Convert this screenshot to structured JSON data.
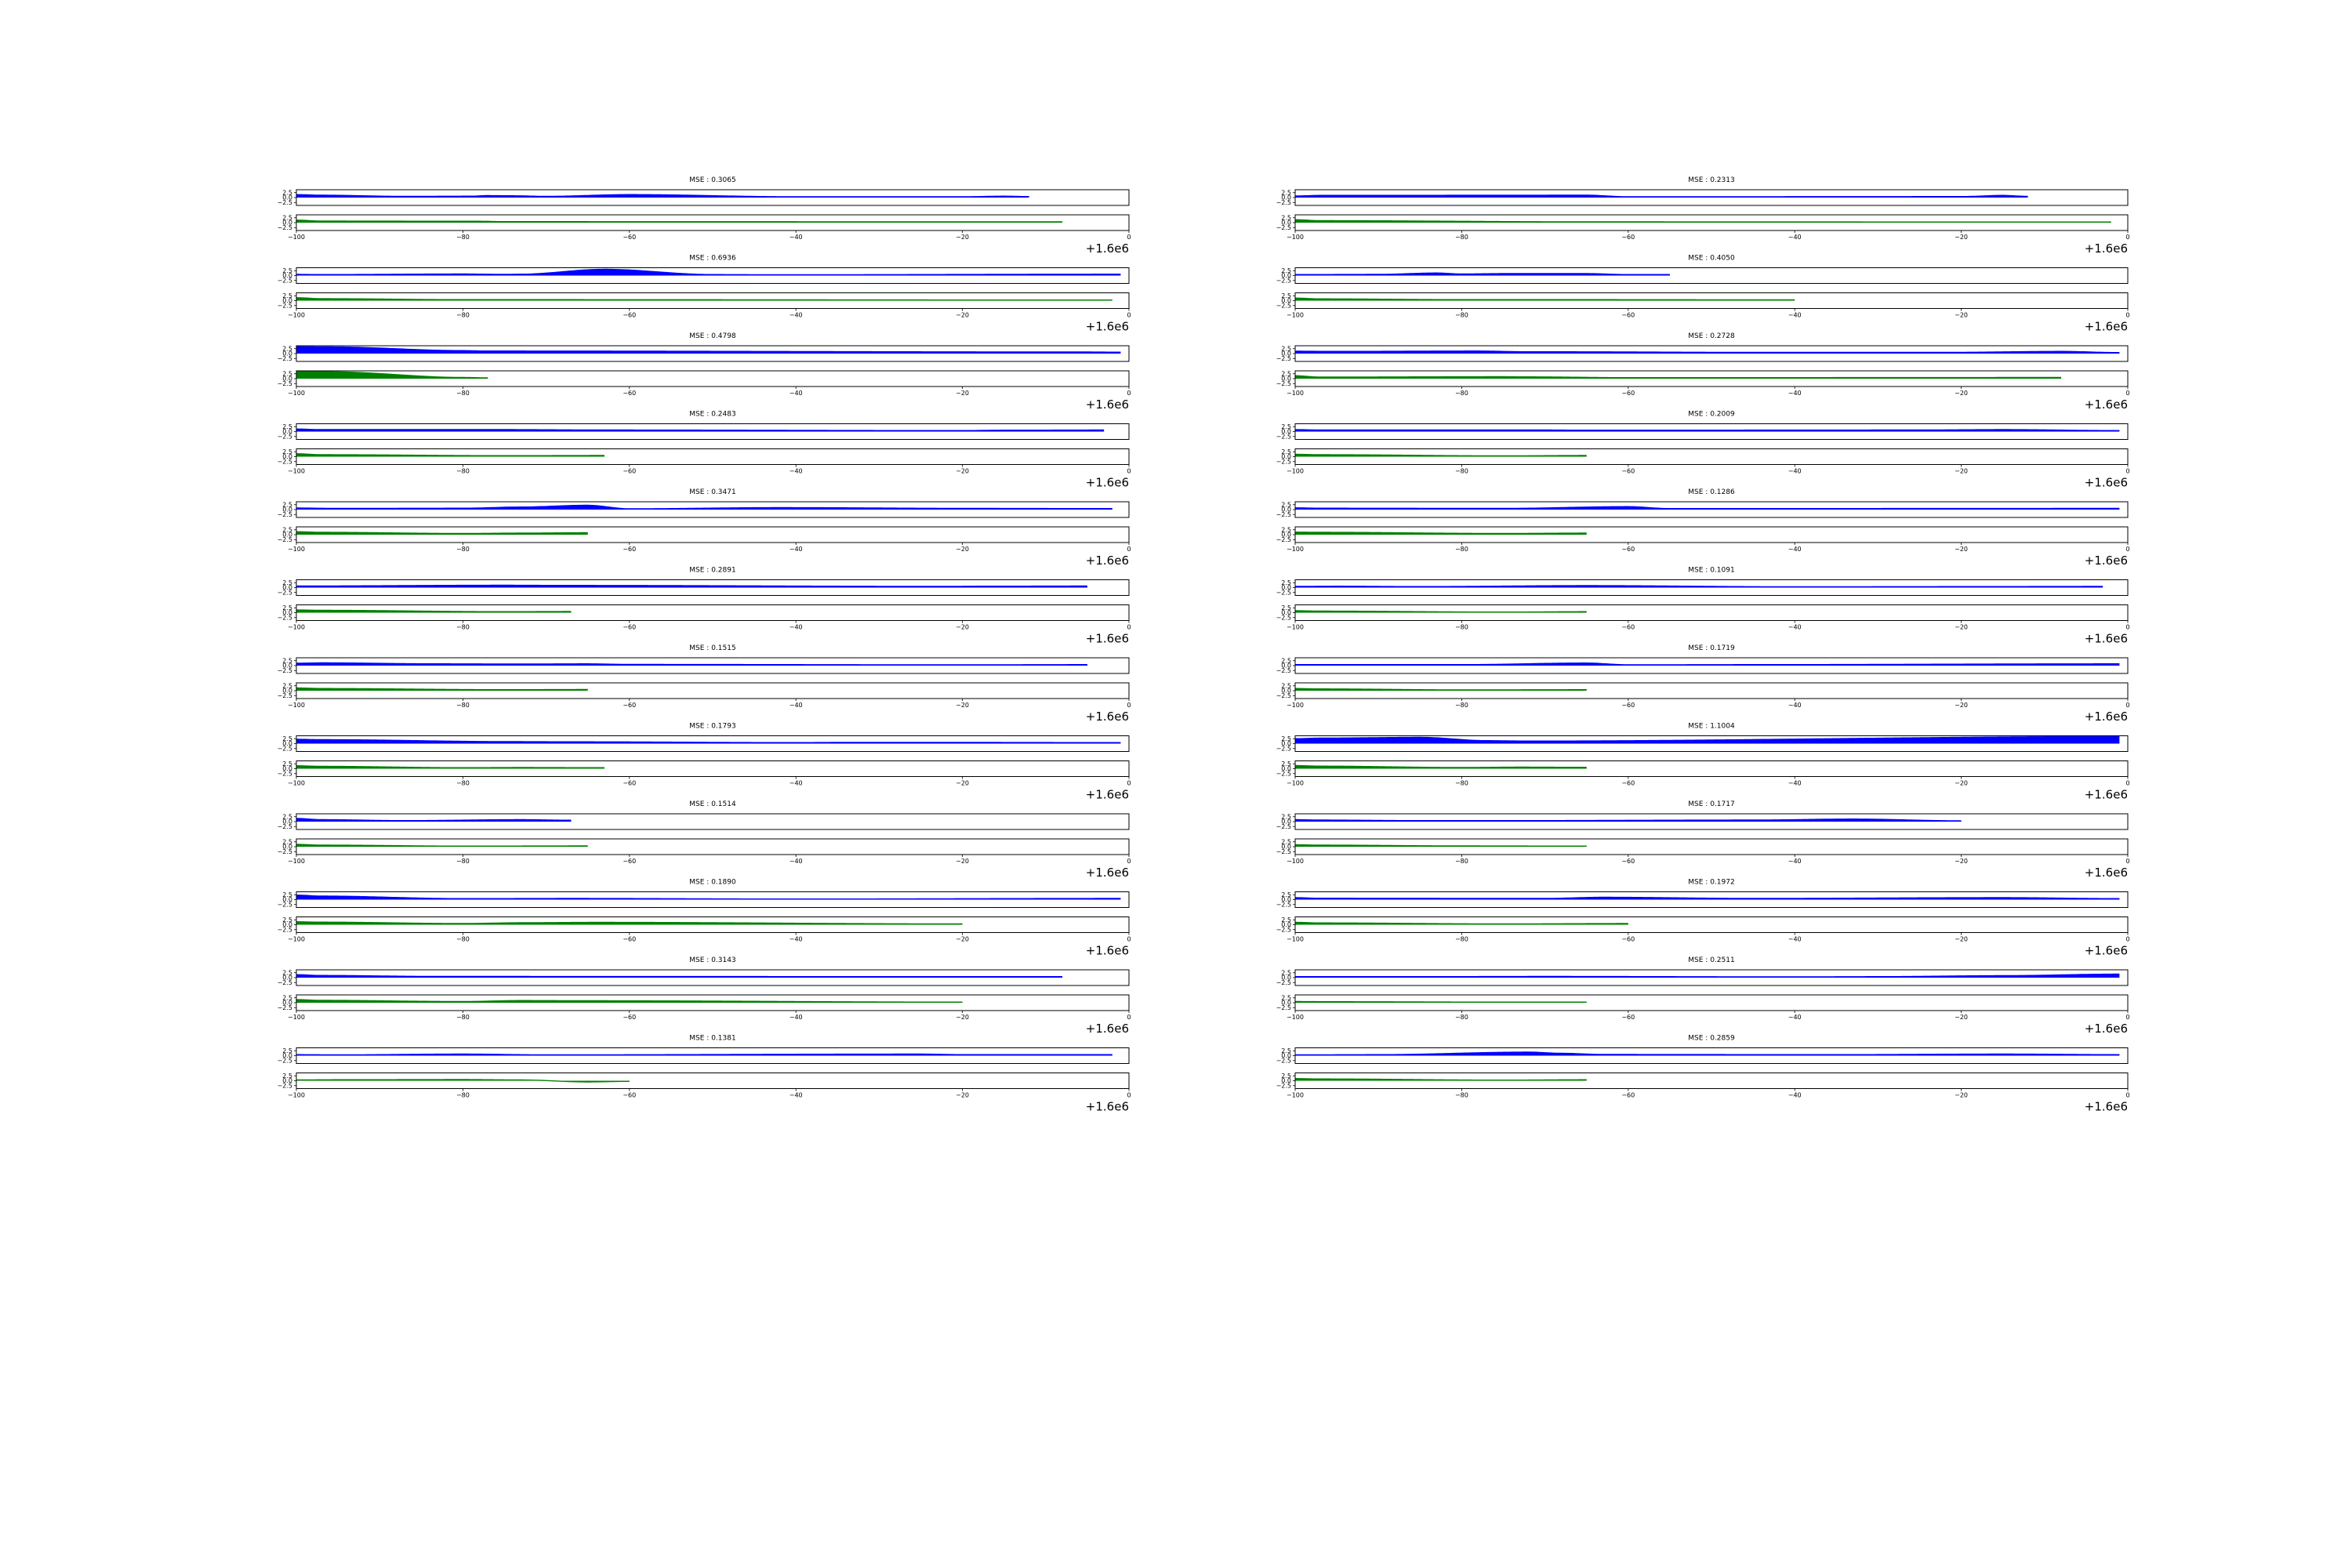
{
  "figure": {
    "offset_label": "+1.6e6",
    "x_ticks": [
      -100,
      -80,
      -60,
      -40,
      -20,
      0
    ],
    "x_tick_labels": [
      "−100",
      "−80",
      "−60",
      "−40",
      "−20",
      "0"
    ],
    "y_ticks": [
      2.5,
      0.0,
      -2.5
    ],
    "y_tick_labels": [
      "2.5",
      "0.0",
      "−2.5"
    ],
    "colors": {
      "top_series": "#0000ff",
      "bottom_series": "#008000",
      "axes": "#000000"
    }
  },
  "chart_data": [
    {
      "type": "area",
      "title": "MSE : 0.3065",
      "x_range": [
        -100,
        0
      ],
      "ylim": [
        -4,
        4
      ],
      "top": [
        [
          -100,
          1.5
        ],
        [
          -97,
          1.2
        ],
        [
          -87,
          0.6
        ],
        [
          -79,
          0.7
        ],
        [
          -77,
          1.0
        ],
        [
          -74,
          0.9
        ],
        [
          -70,
          0.6
        ],
        [
          -60,
          1.5
        ],
        [
          -40,
          0.4
        ],
        [
          -30,
          0.4
        ],
        [
          -20,
          0.4
        ],
        [
          -15,
          0.7
        ],
        [
          -12,
          0.5
        ]
      ],
      "bottom": [
        [
          -100,
          1.3
        ],
        [
          -97,
          0.8
        ],
        [
          -78,
          0.7
        ],
        [
          -75,
          0.5
        ],
        [
          -8,
          0.4
        ]
      ]
    },
    {
      "type": "area",
      "title": "MSE : 0.6936",
      "x_range": [
        -100,
        0
      ],
      "ylim": [
        -4,
        4
      ],
      "top": [
        [
          -100,
          0.6
        ],
        [
          -97,
          0.5
        ],
        [
          -80,
          0.8
        ],
        [
          -75,
          0.6
        ],
        [
          -73,
          0.7
        ],
        [
          -63,
          3.2
        ],
        [
          -50,
          0.5
        ],
        [
          -42,
          0.4
        ],
        [
          -1,
          0.7
        ]
      ],
      "bottom": [
        [
          -100,
          1.5
        ],
        [
          -97,
          1.0
        ],
        [
          -80,
          0.5
        ],
        [
          -73,
          0.5
        ],
        [
          -2,
          0.3
        ]
      ]
    },
    {
      "type": "area",
      "title": "MSE : 0.4798",
      "x_range": [
        -100,
        0
      ],
      "ylim": [
        -4,
        4
      ],
      "top": [
        [
          -100,
          3.5
        ],
        [
          -96,
          3.4
        ],
        [
          -80,
          1.5
        ],
        [
          -77,
          1.3
        ],
        [
          -5,
          0.8
        ],
        [
          -1,
          0.7
        ]
      ],
      "bottom": [
        [
          -100,
          3.6
        ],
        [
          -96,
          3.5
        ],
        [
          -80,
          0.6
        ],
        [
          -77,
          0.4
        ]
      ]
    },
    {
      "type": "area",
      "title": "MSE : 0.2483",
      "x_range": [
        -100,
        0
      ],
      "ylim": [
        -4,
        4
      ],
      "top": [
        [
          -100,
          1.3
        ],
        [
          -97,
          1.0
        ],
        [
          -75,
          1.0
        ],
        [
          -63,
          0.8
        ],
        [
          -20,
          0.5
        ],
        [
          -15,
          0.7
        ],
        [
          -3,
          0.8
        ]
      ],
      "bottom": [
        [
          -100,
          1.5
        ],
        [
          -97,
          1.0
        ],
        [
          -75,
          0.5
        ],
        [
          -63,
          0.6
        ]
      ]
    },
    {
      "type": "area",
      "title": "MSE : 0.3471",
      "x_range": [
        -100,
        0
      ],
      "ylim": [
        -4,
        4
      ],
      "top": [
        [
          -100,
          0.8
        ],
        [
          -95,
          0.6
        ],
        [
          -80,
          0.7
        ],
        [
          -73,
          1.3
        ],
        [
          -65,
          2.2
        ],
        [
          -60,
          0.4
        ],
        [
          -42,
          1.0
        ],
        [
          -18,
          0.6
        ],
        [
          -2,
          0.5
        ]
      ],
      "bottom": [
        [
          -100,
          1.5
        ],
        [
          -97,
          1.2
        ],
        [
          -80,
          0.6
        ],
        [
          -73,
          0.8
        ],
        [
          -65,
          1.0
        ]
      ]
    },
    {
      "type": "area",
      "title": "MSE : 0.2891",
      "x_range": [
        -100,
        0
      ],
      "ylim": [
        -4,
        4
      ],
      "top": [
        [
          -100,
          0.8
        ],
        [
          -75,
          1.2
        ],
        [
          -67,
          1.1
        ],
        [
          -22,
          0.6
        ],
        [
          -18,
          0.7
        ],
        [
          -5,
          0.8
        ]
      ],
      "bottom": [
        [
          -100,
          1.4
        ],
        [
          -97,
          1.2
        ],
        [
          -75,
          0.5
        ],
        [
          -67,
          0.6
        ]
      ]
    },
    {
      "type": "area",
      "title": "MSE : 0.1515",
      "x_range": [
        -100,
        0
      ],
      "ylim": [
        -4,
        4
      ],
      "top": [
        [
          -100,
          1.2
        ],
        [
          -97,
          1.4
        ],
        [
          -83,
          0.9
        ],
        [
          -73,
          0.8
        ],
        [
          -65,
          0.9
        ],
        [
          -60,
          0.6
        ],
        [
          -20,
          0.4
        ],
        [
          -5,
          0.5
        ]
      ],
      "bottom": [
        [
          -100,
          1.4
        ],
        [
          -97,
          1.1
        ],
        [
          -75,
          0.5
        ],
        [
          -65,
          0.6
        ]
      ]
    },
    {
      "type": "area",
      "title": "MSE : 0.1793",
      "x_range": [
        -100,
        0
      ],
      "ylim": [
        -4,
        4
      ],
      "top": [
        [
          -100,
          2.2
        ],
        [
          -97,
          2.0
        ],
        [
          -74,
          1.0
        ],
        [
          -66,
          0.9
        ],
        [
          -40,
          0.5
        ],
        [
          -35,
          0.6
        ],
        [
          -18,
          0.6
        ],
        [
          -1,
          0.5
        ]
      ],
      "bottom": [
        [
          -100,
          1.5
        ],
        [
          -97,
          1.2
        ],
        [
          -80,
          0.5
        ],
        [
          -73,
          0.6
        ],
        [
          -63,
          0.5
        ]
      ]
    },
    {
      "type": "area",
      "title": "MSE : 0.1514",
      "x_range": [
        -100,
        0
      ],
      "ylim": [
        -4,
        4
      ],
      "top": [
        [
          -100,
          1.6
        ],
        [
          -97,
          1.0
        ],
        [
          -87,
          0.5
        ],
        [
          -73,
          1.0
        ],
        [
          -67,
          0.7
        ]
      ],
      "bottom": [
        [
          -100,
          1.2
        ],
        [
          -97,
          0.8
        ],
        [
          -80,
          0.3
        ],
        [
          -65,
          0.4
        ]
      ]
    },
    {
      "type": "area",
      "title": "MSE : 0.1890",
      "x_range": [
        -100,
        0
      ],
      "ylim": [
        -4,
        4
      ],
      "top": [
        [
          -100,
          2.3
        ],
        [
          -97,
          1.8
        ],
        [
          -80,
          0.5
        ],
        [
          -67,
          0.6
        ],
        [
          -40,
          0.3
        ],
        [
          -1,
          0.6
        ]
      ],
      "bottom": [
        [
          -100,
          1.5
        ],
        [
          -97,
          1.3
        ],
        [
          -80,
          0.6
        ],
        [
          -73,
          1.0
        ],
        [
          -64,
          1.2
        ],
        [
          -20,
          0.4
        ]
      ]
    },
    {
      "type": "area",
      "title": "MSE : 0.3143",
      "x_range": [
        -100,
        0
      ],
      "ylim": [
        -4,
        4
      ],
      "top": [
        [
          -100,
          1.5
        ],
        [
          -97,
          1.1
        ],
        [
          -83,
          0.6
        ],
        [
          -8,
          0.5
        ]
      ],
      "bottom": [
        [
          -100,
          1.6
        ],
        [
          -97,
          1.2
        ],
        [
          -80,
          0.6
        ],
        [
          -73,
          1.1
        ],
        [
          -65,
          1.0
        ],
        [
          -20,
          0.3
        ]
      ]
    },
    {
      "type": "area",
      "title": "MSE : 0.1381",
      "x_range": [
        -100,
        0
      ],
      "ylim": [
        -4,
        4
      ],
      "top": [
        [
          -100,
          0.5
        ],
        [
          -95,
          0.4
        ],
        [
          -80,
          0.8
        ],
        [
          -70,
          0.4
        ],
        [
          -25,
          0.8
        ],
        [
          -20,
          0.5
        ],
        [
          -2,
          0.5
        ]
      ],
      "bottom": [
        [
          -100,
          0.4
        ],
        [
          -95,
          0.5
        ],
        [
          -80,
          0.6
        ],
        [
          -73,
          0.4
        ],
        [
          -65,
          -0.6
        ],
        [
          -60,
          -0.3
        ]
      ]
    },
    {
      "type": "area",
      "title": "MSE : 0.2313",
      "x_range": [
        -100,
        0
      ],
      "ylim": [
        -4,
        4
      ],
      "top": [
        [
          -100,
          0.8
        ],
        [
          -97,
          1.1
        ],
        [
          -65,
          1.2
        ],
        [
          -60,
          0.4
        ],
        [
          -20,
          0.5
        ],
        [
          -15,
          1.1
        ],
        [
          -12,
          0.6
        ]
      ],
      "bottom": [
        [
          -100,
          1.5
        ],
        [
          -97,
          1.0
        ],
        [
          -65,
          0.4
        ],
        [
          -2,
          0.3
        ]
      ]
    },
    {
      "type": "area",
      "title": "MSE : 0.4050",
      "x_range": [
        -100,
        0
      ],
      "ylim": [
        -4,
        4
      ],
      "top": [
        [
          -100,
          0.5
        ],
        [
          -90,
          0.6
        ],
        [
          -83,
          1.3
        ],
        [
          -80,
          0.8
        ],
        [
          -75,
          1.0
        ],
        [
          -65,
          1.0
        ],
        [
          -60,
          0.5
        ],
        [
          -55,
          0.5
        ]
      ],
      "bottom": [
        [
          -100,
          1.3
        ],
        [
          -97,
          0.9
        ],
        [
          -80,
          0.5
        ],
        [
          -65,
          0.5
        ],
        [
          -40,
          0.4
        ]
      ]
    },
    {
      "type": "area",
      "title": "MSE : 0.2728",
      "x_range": [
        -100,
        0
      ],
      "ylim": [
        -4,
        4
      ],
      "top": [
        [
          -100,
          1.2
        ],
        [
          -95,
          1.1
        ],
        [
          -78,
          1.3
        ],
        [
          -72,
          0.9
        ],
        [
          -68,
          0.9
        ],
        [
          -45,
          0.6
        ],
        [
          -22,
          0.6
        ],
        [
          -8,
          1.1
        ],
        [
          -1,
          0.5
        ]
      ],
      "bottom": [
        [
          -100,
          1.5
        ],
        [
          -97,
          0.8
        ],
        [
          -75,
          1.0
        ],
        [
          -72,
          0.9
        ],
        [
          -60,
          0.5
        ],
        [
          -8,
          0.6
        ]
      ]
    },
    {
      "type": "area",
      "title": "MSE : 0.2009",
      "x_range": [
        -100,
        0
      ],
      "ylim": [
        -4,
        4
      ],
      "top": [
        [
          -100,
          1.0
        ],
        [
          -97,
          0.8
        ],
        [
          -70,
          0.8
        ],
        [
          -65,
          0.7
        ],
        [
          -25,
          0.8
        ],
        [
          -15,
          1.0
        ],
        [
          -1,
          0.5
        ]
      ],
      "bottom": [
        [
          -100,
          1.2
        ],
        [
          -97,
          1.0
        ],
        [
          -75,
          0.4
        ],
        [
          -65,
          0.6
        ]
      ]
    },
    {
      "type": "area",
      "title": "MSE : 0.1286",
      "x_range": [
        -100,
        0
      ],
      "ylim": [
        -4,
        4
      ],
      "top": [
        [
          -100,
          0.9
        ],
        [
          -97,
          0.7
        ],
        [
          -75,
          0.6
        ],
        [
          -60,
          1.5
        ],
        [
          -55,
          0.5
        ],
        [
          -1,
          0.6
        ]
      ],
      "bottom": [
        [
          -100,
          1.3
        ],
        [
          -97,
          1.2
        ],
        [
          -75,
          0.6
        ],
        [
          -65,
          0.8
        ]
      ]
    },
    {
      "type": "area",
      "title": "MSE : 0.1091",
      "x_range": [
        -100,
        0
      ],
      "ylim": [
        -4,
        4
      ],
      "top": [
        [
          -100,
          0.6
        ],
        [
          -95,
          0.7
        ],
        [
          -85,
          0.5
        ],
        [
          -65,
          1.0
        ],
        [
          -40,
          0.4
        ],
        [
          -20,
          0.5
        ],
        [
          -3,
          0.6
        ]
      ],
      "bottom": [
        [
          -100,
          1.0
        ],
        [
          -97,
          0.8
        ],
        [
          -75,
          0.3
        ],
        [
          -65,
          0.5
        ]
      ]
    },
    {
      "type": "area",
      "title": "MSE : 0.1719",
      "x_range": [
        -100,
        0
      ],
      "ylim": [
        -4,
        4
      ],
      "top": [
        [
          -100,
          0.5
        ],
        [
          -80,
          0.5
        ],
        [
          -65,
          1.3
        ],
        [
          -60,
          0.4
        ],
        [
          -45,
          0.5
        ],
        [
          -1,
          0.9
        ]
      ],
      "bottom": [
        [
          -100,
          1.1
        ],
        [
          -97,
          0.9
        ],
        [
          -80,
          0.4
        ],
        [
          -65,
          0.5
        ]
      ]
    },
    {
      "type": "area",
      "title": "MSE : 1.1004",
      "x_range": [
        -100,
        0
      ],
      "ylim": [
        -4,
        4
      ],
      "top": [
        [
          -100,
          2.5
        ],
        [
          -97,
          2.8
        ],
        [
          -85,
          3.2
        ],
        [
          -77,
          1.5
        ],
        [
          -72,
          1.3
        ],
        [
          -1,
          3.6
        ]
      ],
      "bottom": [
        [
          -100,
          1.6
        ],
        [
          -97,
          1.3
        ],
        [
          -80,
          0.6
        ],
        [
          -73,
          0.8
        ],
        [
          -65,
          0.7
        ]
      ]
    },
    {
      "type": "area",
      "title": "MSE : 0.1717",
      "x_range": [
        -100,
        0
      ],
      "ylim": [
        -4,
        4
      ],
      "top": [
        [
          -100,
          1.0
        ],
        [
          -97,
          0.8
        ],
        [
          -85,
          0.5
        ],
        [
          -75,
          0.5
        ],
        [
          -45,
          0.8
        ],
        [
          -33,
          1.3
        ],
        [
          -20,
          0.4
        ]
      ],
      "bottom": [
        [
          -100,
          1.0
        ],
        [
          -97,
          0.8
        ],
        [
          -80,
          0.4
        ],
        [
          -65,
          0.3
        ]
      ]
    },
    {
      "type": "area",
      "title": "MSE : 0.1972",
      "x_range": [
        -100,
        0
      ],
      "ylim": [
        -4,
        4
      ],
      "top": [
        [
          -100,
          1.0
        ],
        [
          -97,
          0.7
        ],
        [
          -70,
          0.6
        ],
        [
          -63,
          1.2
        ],
        [
          -45,
          0.6
        ],
        [
          -15,
          1.0
        ],
        [
          -1,
          0.5
        ]
      ],
      "bottom": [
        [
          -100,
          1.2
        ],
        [
          -97,
          0.9
        ],
        [
          -75,
          0.4
        ],
        [
          -60,
          0.6
        ]
      ]
    },
    {
      "type": "area",
      "title": "MSE : 0.2511",
      "x_range": [
        -100,
        0
      ],
      "ylim": [
        -4,
        4
      ],
      "top": [
        [
          -100,
          0.5
        ],
        [
          -85,
          0.5
        ],
        [
          -70,
          0.6
        ],
        [
          -40,
          0.4
        ],
        [
          -30,
          0.5
        ],
        [
          -15,
          1.0
        ],
        [
          -1,
          1.8
        ]
      ],
      "bottom": [
        [
          -100,
          0.6
        ],
        [
          -95,
          0.5
        ],
        [
          -75,
          0.3
        ],
        [
          -65,
          0.3
        ]
      ]
    },
    {
      "type": "area",
      "title": "MSE : 0.2859",
      "x_range": [
        -100,
        0
      ],
      "ylim": [
        -4,
        4
      ],
      "top": [
        [
          -100,
          0.4
        ],
        [
          -90,
          0.5
        ],
        [
          -72,
          1.8
        ],
        [
          -68,
          1.2
        ],
        [
          -63,
          0.6
        ],
        [
          -35,
          0.5
        ],
        [
          -15,
          0.8
        ],
        [
          -1,
          0.5
        ]
      ],
      "bottom": [
        [
          -100,
          1.1
        ],
        [
          -97,
          0.9
        ],
        [
          -75,
          0.3
        ],
        [
          -65,
          0.5
        ]
      ]
    }
  ]
}
